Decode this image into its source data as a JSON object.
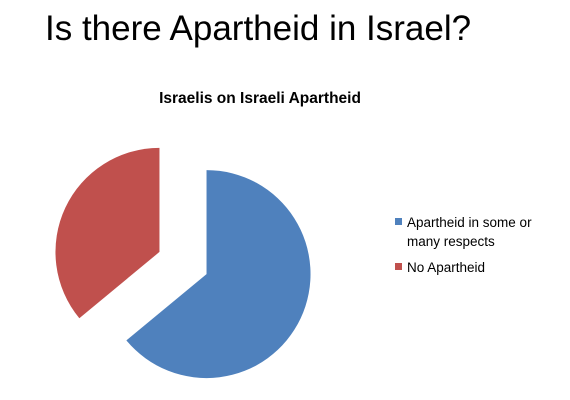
{
  "slide": {
    "title": "Is there Apartheid in Israel?"
  },
  "chart_data": {
    "type": "pie",
    "title": "Israelis on Israeli Apartheid",
    "categories": [
      "Apartheid in some or many respects",
      "No Apartheid"
    ],
    "values": [
      64,
      36
    ],
    "colors": [
      "#4f81bd",
      "#c0504d"
    ],
    "exploded": true,
    "legend_position": "right"
  }
}
